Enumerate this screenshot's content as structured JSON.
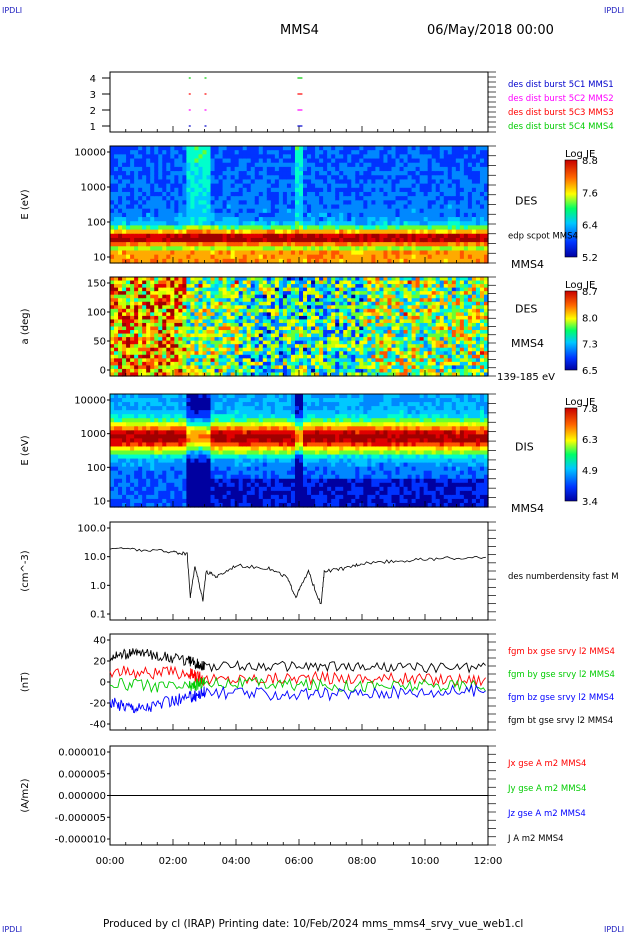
{
  "header": {
    "corner_left": "IPDLI",
    "corner_right": "IPDLI",
    "spacecraft": "MMS4",
    "date": "06/May/2018 00:00"
  },
  "footer": {
    "produced": "Produced by cl (IRAP)   Printing date: 10/Feb/2024   mms_mms4_srvy_vue_web1.cl",
    "corner_left": "IPDLI",
    "corner_right": "IPDLI"
  },
  "colors": {
    "red": "#ff0000",
    "magenta": "#ff00ff",
    "blue": "#0000ff",
    "green": "#00cc00",
    "side_blue": "#0000cc",
    "black": "#000000"
  },
  "chart_data": [
    {
      "type": "scatter",
      "yticks": [
        "1",
        "2",
        "3",
        "4"
      ],
      "series": [
        {
          "name": "des dist burst 5C1 MMS1",
          "color": "#0000cc",
          "y": 1
        },
        {
          "name": "des dist burst 5C2 MMS2",
          "color": "#ff00ff",
          "y": 2
        },
        {
          "name": "des dist burst 5C3 MMS3",
          "color": "#ff0000",
          "y": 3
        },
        {
          "name": "des dist burst 5C4 MMS4",
          "color": "#00cc00",
          "y": 4
        }
      ],
      "x_hours": [
        2.5,
        3.0,
        5.95
      ]
    },
    {
      "type": "heatmap",
      "ylabel": "E (eV)",
      "yticks": [
        "10000",
        "1000",
        "100",
        "10"
      ],
      "instrument": "DES",
      "overlay": "edp scpot MMS4",
      "spacecraft": "MMS4",
      "colorbar": {
        "title": "Log JE",
        "ticks": [
          "8.8",
          "7.6",
          "6.4",
          "5.2"
        ]
      }
    },
    {
      "type": "heatmap",
      "ylabel": "a (deg)",
      "yticks": [
        "150",
        "100",
        "50",
        "0"
      ],
      "instrument": "DES",
      "spacecraft": "MMS4",
      "energy_range": "139-185 eV",
      "colorbar": {
        "title": "Log JE",
        "ticks": [
          "8.7",
          "8.0",
          "7.3",
          "6.5"
        ]
      }
    },
    {
      "type": "heatmap",
      "ylabel": "E (eV)",
      "yticks": [
        "10000",
        "1000",
        "100",
        "10"
      ],
      "instrument": "DIS",
      "spacecraft": "MMS4",
      "colorbar": {
        "title": "Log JE",
        "ticks": [
          "7.8",
          "6.3",
          "4.9",
          "3.4"
        ]
      }
    },
    {
      "type": "line",
      "ylabel": "(cm^-3)",
      "yticks": [
        "100.0",
        "10.0",
        "1.0",
        "0.1"
      ],
      "series": [
        {
          "name": "des numberdensity fast M",
          "color": "#000000",
          "x": [
            0.0,
            1.0,
            2.0,
            2.45,
            2.55,
            2.7,
            2.95,
            3.05,
            3.4,
            4.0,
            5.0,
            5.6,
            5.9,
            6.3,
            6.7,
            6.8,
            7.5,
            8.0,
            9.0,
            10.0,
            11.0,
            12.0
          ],
          "y": [
            20,
            17,
            15,
            12,
            0.4,
            5,
            0.3,
            3,
            2,
            5,
            4,
            2,
            0.4,
            3,
            0.2,
            3,
            4,
            6,
            7,
            8,
            9,
            9
          ]
        }
      ]
    },
    {
      "type": "line",
      "ylabel": "(nT)",
      "yticks": [
        "40",
        "20",
        "0",
        "-20",
        "-40"
      ],
      "ylim": [
        -45,
        45
      ],
      "series": [
        {
          "name": "fgm bx gse srvy l2 MMS4",
          "color": "#ff0000",
          "x": [
            0,
            2.5,
            3,
            6,
            9,
            12
          ],
          "y": [
            10,
            8,
            2,
            4,
            3,
            2
          ]
        },
        {
          "name": "fgm by gse srvy l2 MMS4",
          "color": "#00cc00",
          "x": [
            0,
            2.5,
            3,
            6,
            9,
            12
          ],
          "y": [
            -2,
            -5,
            0,
            -3,
            -4,
            -3
          ]
        },
        {
          "name": "fgm bz gse srvy l2 MMS4",
          "color": "#0000ff",
          "x": [
            0,
            1,
            2.5,
            3,
            6,
            9,
            12
          ],
          "y": [
            -20,
            -25,
            -15,
            -10,
            -12,
            -10,
            -8
          ]
        },
        {
          "name": "fgm bt gse srvy l2 MMS4",
          "color": "#000000",
          "x": [
            0,
            1,
            2.5,
            3,
            6,
            9,
            12
          ],
          "y": [
            25,
            28,
            20,
            15,
            15,
            14,
            14
          ]
        }
      ]
    },
    {
      "type": "line",
      "ylabel": "(A/m2)",
      "yticks": [
        "0.000010",
        "0.000005",
        "0.000000",
        "-0.000005",
        "-0.000010"
      ],
      "ylim": [
        -1e-05,
        1e-05
      ],
      "series": [
        {
          "name": "Jx gse A m2 MMS4",
          "color": "#ff0000"
        },
        {
          "name": "Jy gse A m2 MMS4",
          "color": "#00cc00"
        },
        {
          "name": "Jz gse A m2 MMS4",
          "color": "#0000ff"
        },
        {
          "name": "J A m2 MMS4",
          "color": "#000000"
        }
      ],
      "x": [
        0,
        12
      ],
      "y": [
        0,
        0
      ]
    }
  ],
  "xticks": [
    "00:00",
    "02:00",
    "04:00",
    "06:00",
    "08:00",
    "10:00",
    "12:00"
  ]
}
